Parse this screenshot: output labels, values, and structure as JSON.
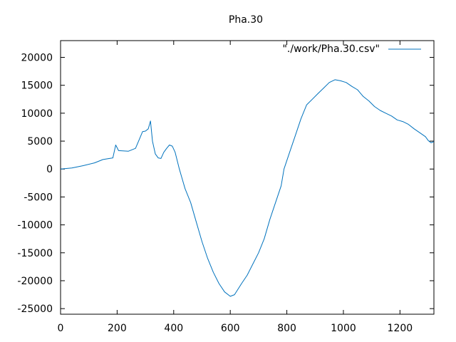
{
  "chart_data": {
    "type": "line",
    "title": "Pha.30",
    "xlabel": "",
    "ylabel": "",
    "xlim": [
      0,
      1320
    ],
    "ylim": [
      -26000,
      23000
    ],
    "xticks": [
      0,
      200,
      400,
      600,
      800,
      1000,
      1200
    ],
    "yticks": [
      -25000,
      -20000,
      -15000,
      -10000,
      -5000,
      0,
      5000,
      10000,
      15000,
      20000
    ],
    "grid": false,
    "legend_position": "top-right",
    "series": [
      {
        "name": "\"./work/Pha.30.csv\"",
        "color": "#0072bd",
        "points": [
          [
            0,
            0
          ],
          [
            40,
            200
          ],
          [
            80,
            600
          ],
          [
            120,
            1100
          ],
          [
            150,
            1700
          ],
          [
            185,
            2000
          ],
          [
            195,
            4300
          ],
          [
            205,
            3300
          ],
          [
            240,
            3200
          ],
          [
            265,
            3700
          ],
          [
            280,
            5500
          ],
          [
            290,
            6700
          ],
          [
            300,
            6800
          ],
          [
            310,
            7200
          ],
          [
            318,
            8600
          ],
          [
            325,
            5000
          ],
          [
            335,
            2700
          ],
          [
            345,
            2000
          ],
          [
            355,
            1900
          ],
          [
            365,
            3000
          ],
          [
            375,
            3700
          ],
          [
            385,
            4300
          ],
          [
            395,
            4100
          ],
          [
            405,
            3000
          ],
          [
            420,
            0
          ],
          [
            440,
            -3500
          ],
          [
            460,
            -6000
          ],
          [
            480,
            -9500
          ],
          [
            500,
            -13000
          ],
          [
            520,
            -16000
          ],
          [
            540,
            -18500
          ],
          [
            560,
            -20500
          ],
          [
            580,
            -22000
          ],
          [
            600,
            -22800
          ],
          [
            615,
            -22500
          ],
          [
            640,
            -20500
          ],
          [
            660,
            -19000
          ],
          [
            680,
            -17000
          ],
          [
            700,
            -15000
          ],
          [
            720,
            -12500
          ],
          [
            740,
            -9000
          ],
          [
            760,
            -6000
          ],
          [
            780,
            -3000
          ],
          [
            790,
            0
          ],
          [
            810,
            3000
          ],
          [
            830,
            6000
          ],
          [
            850,
            9000
          ],
          [
            870,
            11500
          ],
          [
            890,
            12500
          ],
          [
            910,
            13500
          ],
          [
            930,
            14500
          ],
          [
            950,
            15500
          ],
          [
            970,
            16000
          ],
          [
            990,
            15800
          ],
          [
            1010,
            15500
          ],
          [
            1030,
            14800
          ],
          [
            1050,
            14200
          ],
          [
            1070,
            13000
          ],
          [
            1090,
            12200
          ],
          [
            1110,
            11200
          ],
          [
            1130,
            10500
          ],
          [
            1150,
            10000
          ],
          [
            1170,
            9500
          ],
          [
            1190,
            8800
          ],
          [
            1210,
            8500
          ],
          [
            1230,
            8000
          ],
          [
            1250,
            7200
          ],
          [
            1270,
            6500
          ],
          [
            1290,
            5800
          ],
          [
            1300,
            5100
          ],
          [
            1310,
            4700
          ],
          [
            1320,
            4900
          ]
        ]
      }
    ]
  }
}
